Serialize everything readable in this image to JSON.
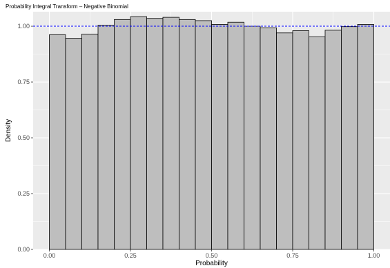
{
  "chart_data": {
    "type": "bar",
    "title": "Probability Integral Transform – Negative Binomial",
    "xlabel": "Probability",
    "ylabel": "Density",
    "xlim": [
      -0.05,
      1.05
    ],
    "ylim": [
      0,
      1.065
    ],
    "x_ticks": [
      0.0,
      0.25,
      0.5,
      0.75,
      1.0
    ],
    "x_tick_labels": [
      "0.00",
      "0.25",
      "0.50",
      "0.75",
      "1.00"
    ],
    "y_ticks": [
      0.0,
      0.25,
      0.5,
      0.75,
      1.0
    ],
    "y_tick_labels": [
      "0.00",
      "0.25",
      "0.50",
      "0.75",
      "1.00"
    ],
    "grid": true,
    "bins": {
      "starts": [
        0.0,
        0.05,
        0.1,
        0.15,
        0.2,
        0.25,
        0.3,
        0.35,
        0.4,
        0.45,
        0.5,
        0.55,
        0.6,
        0.65,
        0.7,
        0.75,
        0.8,
        0.85,
        0.9,
        0.95
      ],
      "width": 0.05,
      "values": [
        0.962,
        0.946,
        0.965,
        1.005,
        1.03,
        1.043,
        1.035,
        1.04,
        1.03,
        1.025,
        1.008,
        1.018,
        1.0,
        0.993,
        0.97,
        0.98,
        0.952,
        0.982,
        0.998,
        1.008
      ]
    },
    "reference_line": {
      "y": 1.0,
      "style": "dashed"
    },
    "colors": {
      "panel": "#ebebeb",
      "grid_major": "#ffffff",
      "bar_fill": "#bebebe",
      "bar_stroke": "#000000",
      "reference_line": "#0000ff"
    }
  }
}
